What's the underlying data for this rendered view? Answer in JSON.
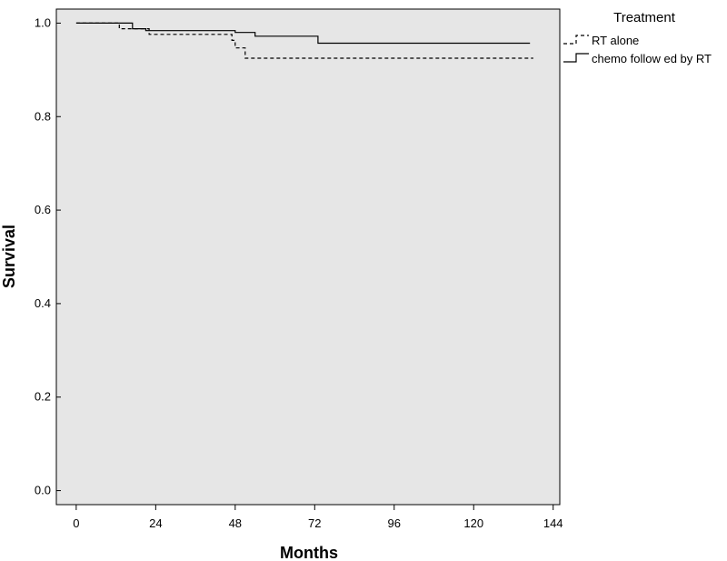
{
  "chart_data": {
    "type": "line",
    "step": true,
    "xlabel": "Months",
    "ylabel": "Survival",
    "xlim": [
      -6,
      146
    ],
    "ylim": [
      -0.03,
      1.03
    ],
    "xticks": [
      0,
      24,
      48,
      72,
      96,
      120,
      144
    ],
    "yticks": [
      0.0,
      0.2,
      0.4,
      0.6,
      0.8,
      1.0
    ],
    "grid": false,
    "background": "#e6e6e6",
    "legend": {
      "title": "Treatment",
      "placement": "right"
    },
    "series": [
      {
        "name": "RT alone",
        "style": "dashed",
        "color": "#000000",
        "points": [
          [
            0,
            1.0
          ],
          [
            13,
            1.0
          ],
          [
            13,
            0.988
          ],
          [
            22,
            0.988
          ],
          [
            22,
            0.976
          ],
          [
            47,
            0.976
          ],
          [
            47,
            0.963
          ],
          [
            48,
            0.963
          ],
          [
            48,
            0.947
          ],
          [
            51,
            0.947
          ],
          [
            51,
            0.925
          ],
          [
            138,
            0.925
          ]
        ]
      },
      {
        "name": "chemo follow ed by RT",
        "style": "solid",
        "color": "#000000",
        "points": [
          [
            0,
            1.0
          ],
          [
            17,
            1.0
          ],
          [
            17,
            0.988
          ],
          [
            21,
            0.988
          ],
          [
            21,
            0.984
          ],
          [
            48,
            0.984
          ],
          [
            48,
            0.98
          ],
          [
            54,
            0.98
          ],
          [
            54,
            0.972
          ],
          [
            73,
            0.972
          ],
          [
            73,
            0.957
          ],
          [
            137,
            0.957
          ]
        ]
      }
    ]
  }
}
